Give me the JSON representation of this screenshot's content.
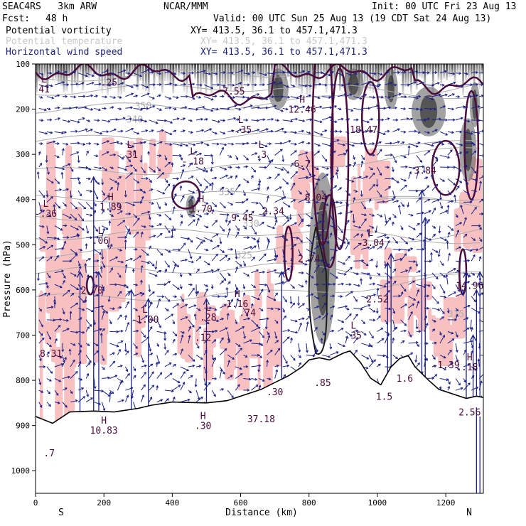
{
  "header": {
    "model": "SEAC4RS   3km ARW",
    "org": "NCAR/MMM",
    "init": "Init: 00 UTC Fri 23 Aug 13",
    "fcst_label": "Fcst:",
    "fcst_value": "48 h",
    "valid": "Valid: 00 UTC Sun 25 Aug 13 (19 CDT Sat 24 Aug 13)"
  },
  "legend": [
    {
      "label": "Potential vorticity",
      "xy": "XY= 413.5, 36.1 to 457.1,471.3",
      "color": "#000000"
    },
    {
      "label": "Potential temperature",
      "xy": "XY= 413.5, 36.1 to 457.1,471.3",
      "color": "#c8c8c8"
    },
    {
      "label": "Horizontal wind speed",
      "xy": "XY= 413.5, 36.1 to 457.1,471.3",
      "color": "#202080"
    }
  ],
  "chart_data": {
    "type": "cross-section",
    "xlabel": "Distance (km)",
    "ylabel": "Pressure (hPa)",
    "xlim": [
      0,
      1310
    ],
    "ylim": [
      1050,
      100
    ],
    "x_ticks": [
      0,
      200,
      400,
      600,
      800,
      1000,
      1200
    ],
    "y_ticks": [
      100,
      200,
      300,
      400,
      500,
      600,
      700,
      800,
      900,
      1000
    ],
    "x_end_labels": {
      "left": "S",
      "right": "N"
    },
    "terrain": [
      [
        0,
        880
      ],
      [
        50,
        895
      ],
      [
        100,
        870
      ],
      [
        170,
        868
      ],
      [
        230,
        870
      ],
      [
        300,
        862
      ],
      [
        340,
        855
      ],
      [
        400,
        848
      ],
      [
        500,
        850
      ],
      [
        560,
        845
      ],
      [
        620,
        830
      ],
      [
        660,
        820
      ],
      [
        700,
        805
      ],
      [
        740,
        790
      ],
      [
        780,
        770
      ],
      [
        800,
        755
      ],
      [
        830,
        750
      ],
      [
        860,
        755
      ],
      [
        900,
        740
      ],
      [
        920,
        735
      ],
      [
        950,
        760
      ],
      [
        980,
        795
      ],
      [
        1010,
        810
      ],
      [
        1040,
        770
      ],
      [
        1065,
        752
      ],
      [
        1090,
        745
      ],
      [
        1110,
        770
      ],
      [
        1150,
        800
      ],
      [
        1180,
        820
      ],
      [
        1220,
        830
      ],
      [
        1260,
        840
      ],
      [
        1290,
        835
      ],
      [
        1310,
        838
      ]
    ],
    "theta_contours": [
      {
        "label": "340",
        "x": 290,
        "p": 230
      },
      {
        "label": "335",
        "x": 560,
        "p": 390
      },
      {
        "label": "330",
        "x": 630,
        "p": 460
      },
      {
        "label": "325",
        "x": 610,
        "p": 530
      },
      {
        "label": "315",
        "x": 1230,
        "p": 660
      },
      {
        "label": "350",
        "x": 315,
        "p": 200
      }
    ],
    "extrema": [
      {
        "type": "L",
        "value": "41",
        "x": 25,
        "p": 155
      },
      {
        "type": "L",
        "value": ".25",
        "x": 215,
        "p": 140
      },
      {
        "type": "L",
        "value": ".31",
        "x": 275,
        "p": 300
      },
      {
        "type": "L",
        "value": "-.18",
        "x": 460,
        "p": 315
      },
      {
        "type": "L",
        "value": "-.35",
        "x": 600,
        "p": 245
      },
      {
        "type": "L",
        "value": ".3",
        "x": 660,
        "p": 300
      },
      {
        "type": "",
        "value": "7.55",
        "x": 580,
        "p": 160
      },
      {
        "type": "H",
        "value": "12.46",
        "x": 780,
        "p": 200
      },
      {
        "type": "",
        "value": "18.47",
        "x": 960,
        "p": 245
      },
      {
        "type": "",
        "value": "6.7",
        "x": 780,
        "p": 320
      },
      {
        "type": "",
        "value": "3.84",
        "x": 1140,
        "p": 335
      },
      {
        "type": "L",
        "value": "-.36",
        "x": 30,
        "p": 430
      },
      {
        "type": "H",
        "value": "1.89",
        "x": 220,
        "p": 415
      },
      {
        "type": "L",
        "value": ".06",
        "x": 190,
        "p": 490
      },
      {
        "type": "H",
        "value": "1.70",
        "x": 485,
        "p": 420
      },
      {
        "type": "",
        "value": "9.45",
        "x": 605,
        "p": 440
      },
      {
        "type": "",
        "value": "2.34",
        "x": 695,
        "p": 425
      },
      {
        "type": "",
        "value": "8.04",
        "x": 820,
        "p": 395
      },
      {
        "type": "L",
        "value": "-3.04",
        "x": 980,
        "p": 495
      },
      {
        "type": "",
        "value": "2.74",
        "x": 800,
        "p": 530
      },
      {
        "type": "",
        "value": "2.70",
        "x": 165,
        "p": 600
      },
      {
        "type": "H",
        "value": "1.16",
        "x": 590,
        "p": 630
      },
      {
        "type": "L",
        "value": "-1.00",
        "x": 320,
        "p": 665
      },
      {
        "type": "L",
        "value": ".28",
        "x": 505,
        "p": 660
      },
      {
        "type": "",
        "value": ".74",
        "x": 620,
        "p": 650
      },
      {
        "type": "",
        "value": ".12",
        "x": 490,
        "p": 705
      },
      {
        "type": "L",
        "value": ".35",
        "x": 930,
        "p": 700
      },
      {
        "type": "",
        "value": "2.52",
        "x": 1000,
        "p": 620
      },
      {
        "type": "",
        "value": "14.96",
        "x": 1270,
        "p": 590
      },
      {
        "type": "",
        "value": "8.31",
        "x": 45,
        "p": 740
      },
      {
        "type": "",
        "value": "-1.39",
        "x": 1200,
        "p": 765
      },
      {
        "type": "H",
        "value": ".18",
        "x": 1270,
        "p": 770
      },
      {
        "type": "",
        "value": "1.6",
        "x": 1080,
        "p": 795
      },
      {
        "type": "",
        "value": ".30",
        "x": 700,
        "p": 825
      },
      {
        "type": "",
        "value": ".85",
        "x": 840,
        "p": 805
      },
      {
        "type": "",
        "value": "1.5",
        "x": 1020,
        "p": 835
      },
      {
        "type": "H",
        "value": ".30",
        "x": 490,
        "p": 900
      },
      {
        "type": "H",
        "value": "10.83",
        "x": 200,
        "p": 910
      },
      {
        "type": "",
        "value": "37.18",
        "x": 660,
        "p": 885
      },
      {
        "type": "",
        "value": "2.56",
        "x": 1270,
        "p": 870
      },
      {
        "type": "",
        "value": ".7",
        "x": 40,
        "p": 960
      }
    ]
  }
}
